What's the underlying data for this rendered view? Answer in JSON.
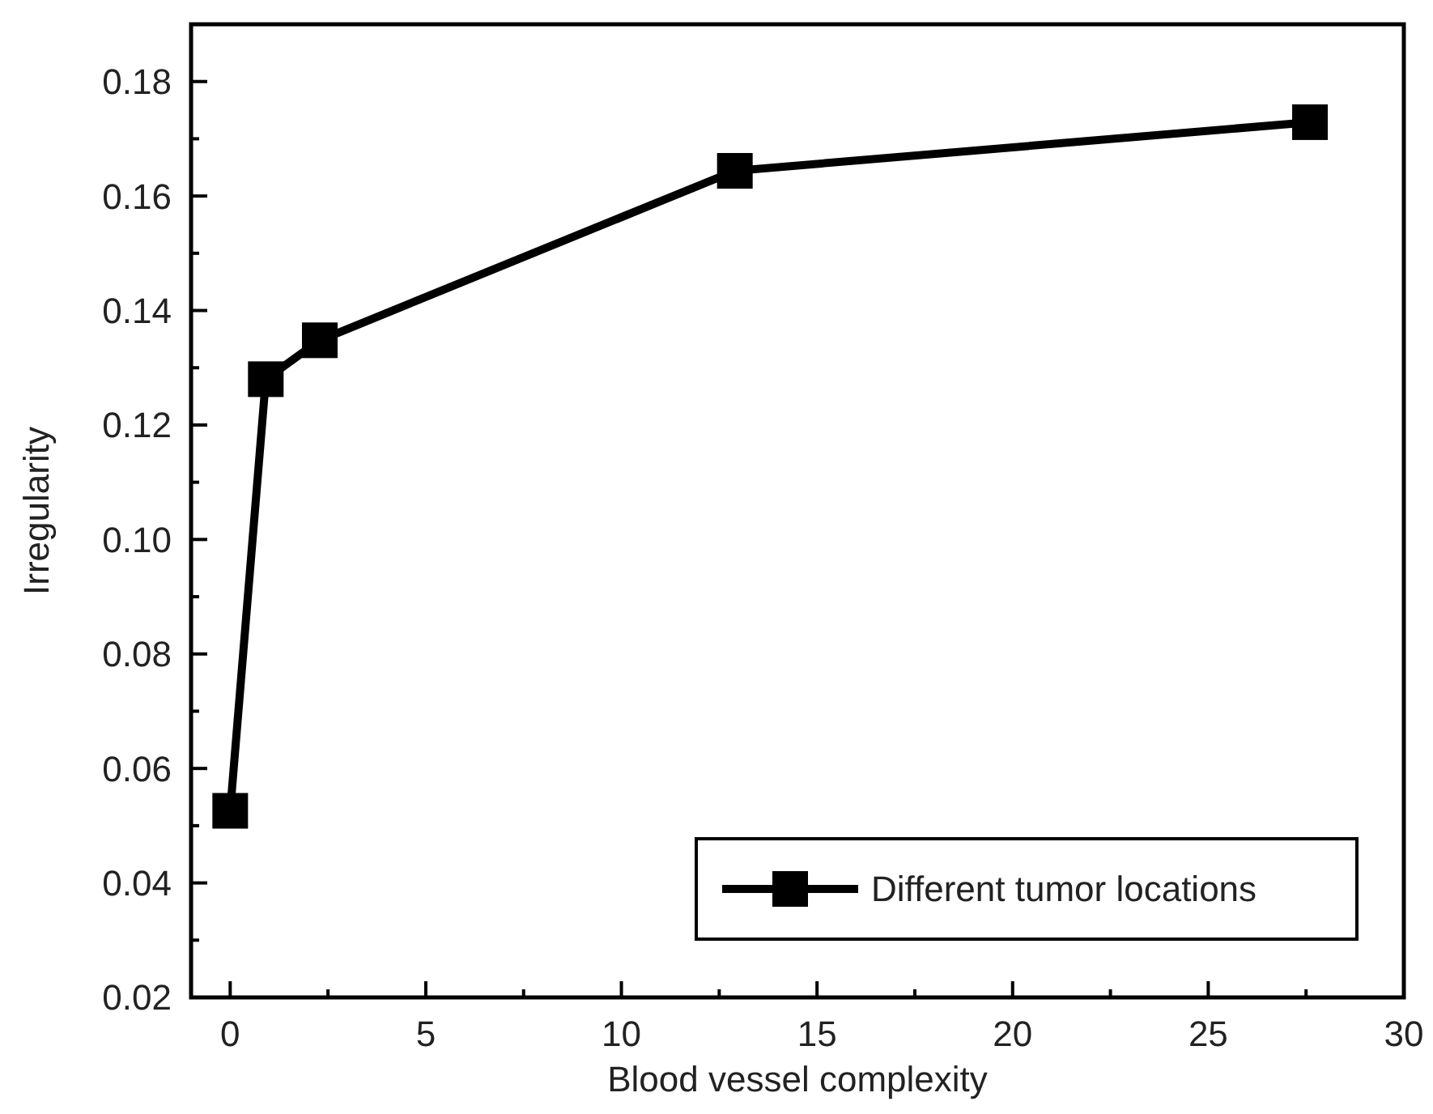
{
  "chart_data": {
    "type": "line",
    "xlabel": "Blood vessel complexity",
    "ylabel": "Irregularity",
    "series": [
      {
        "name": "Different tumor locations",
        "color": "#000000",
        "x": [
          0,
          0.91,
          2.29,
          12.9,
          27.6
        ],
        "values": [
          0.0526,
          0.128,
          0.1348,
          0.1644,
          0.1729
        ]
      }
    ],
    "xlim": [
      -1,
      30
    ],
    "xticks": [
      0,
      5,
      10,
      15,
      20,
      25,
      30
    ],
    "ylim": [
      0.02,
      0.19
    ],
    "yticks": [
      {
        "value": 0.02,
        "label": "0.02"
      },
      {
        "value": 0.04,
        "label": "0.04"
      },
      {
        "value": 0.06,
        "label": "0.06"
      },
      {
        "value": 0.08,
        "label": "0.08"
      },
      {
        "value": 0.1,
        "label": "0.10"
      },
      {
        "value": 0.12,
        "label": "0.12"
      },
      {
        "value": 0.14,
        "label": "0.14"
      },
      {
        "value": 0.16,
        "label": "0.16"
      },
      {
        "value": 0.18,
        "label": "0.18"
      }
    ],
    "marker": "square",
    "line_style": "solid",
    "legend": "bottom right",
    "grid": false
  }
}
